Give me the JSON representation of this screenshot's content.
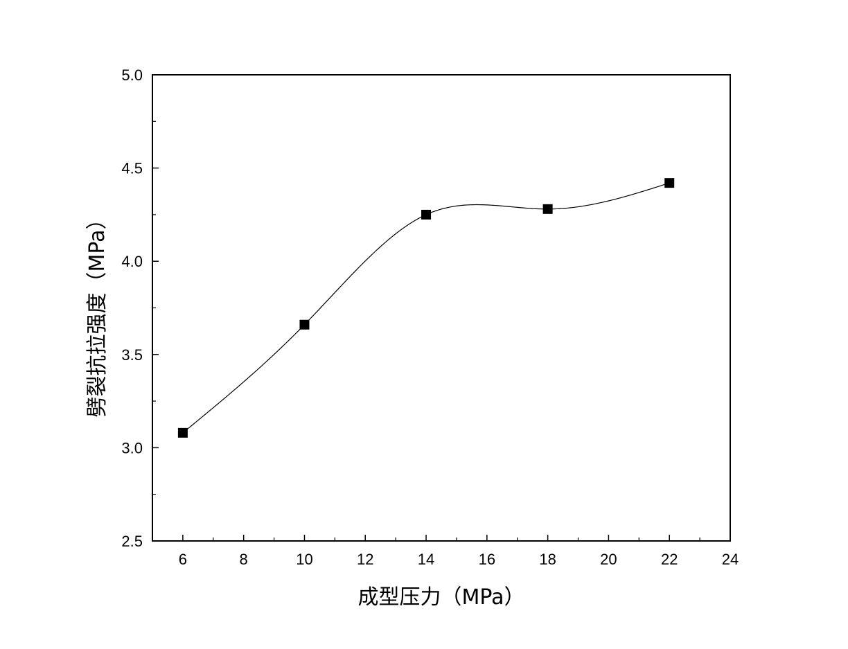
{
  "chart_data": {
    "type": "line",
    "title": "",
    "xlabel": "成型压力（MPa）",
    "ylabel": "劈裂抗拉强度（MPa）",
    "xlim": [
      5,
      24
    ],
    "ylim": [
      2.5,
      5.0
    ],
    "x_ticks": [
      6,
      8,
      10,
      12,
      14,
      16,
      18,
      20,
      22,
      24
    ],
    "x_tick_labels": [
      "6",
      "8",
      "10",
      "12",
      "14",
      "16",
      "18",
      "20",
      "22",
      "24"
    ],
    "y_ticks": [
      2.5,
      3.0,
      3.5,
      4.0,
      4.5,
      5.0
    ],
    "y_tick_labels": [
      "2.5",
      "3.0",
      "3.5",
      "4.0",
      "4.5",
      "5.0"
    ],
    "grid": false,
    "legend": "none",
    "series": [
      {
        "marker": "square",
        "line": "smooth-spline",
        "color": "#000000",
        "x": [
          6,
          10,
          14,
          18,
          22
        ],
        "y": [
          3.08,
          3.66,
          4.25,
          4.28,
          4.42
        ]
      }
    ]
  }
}
